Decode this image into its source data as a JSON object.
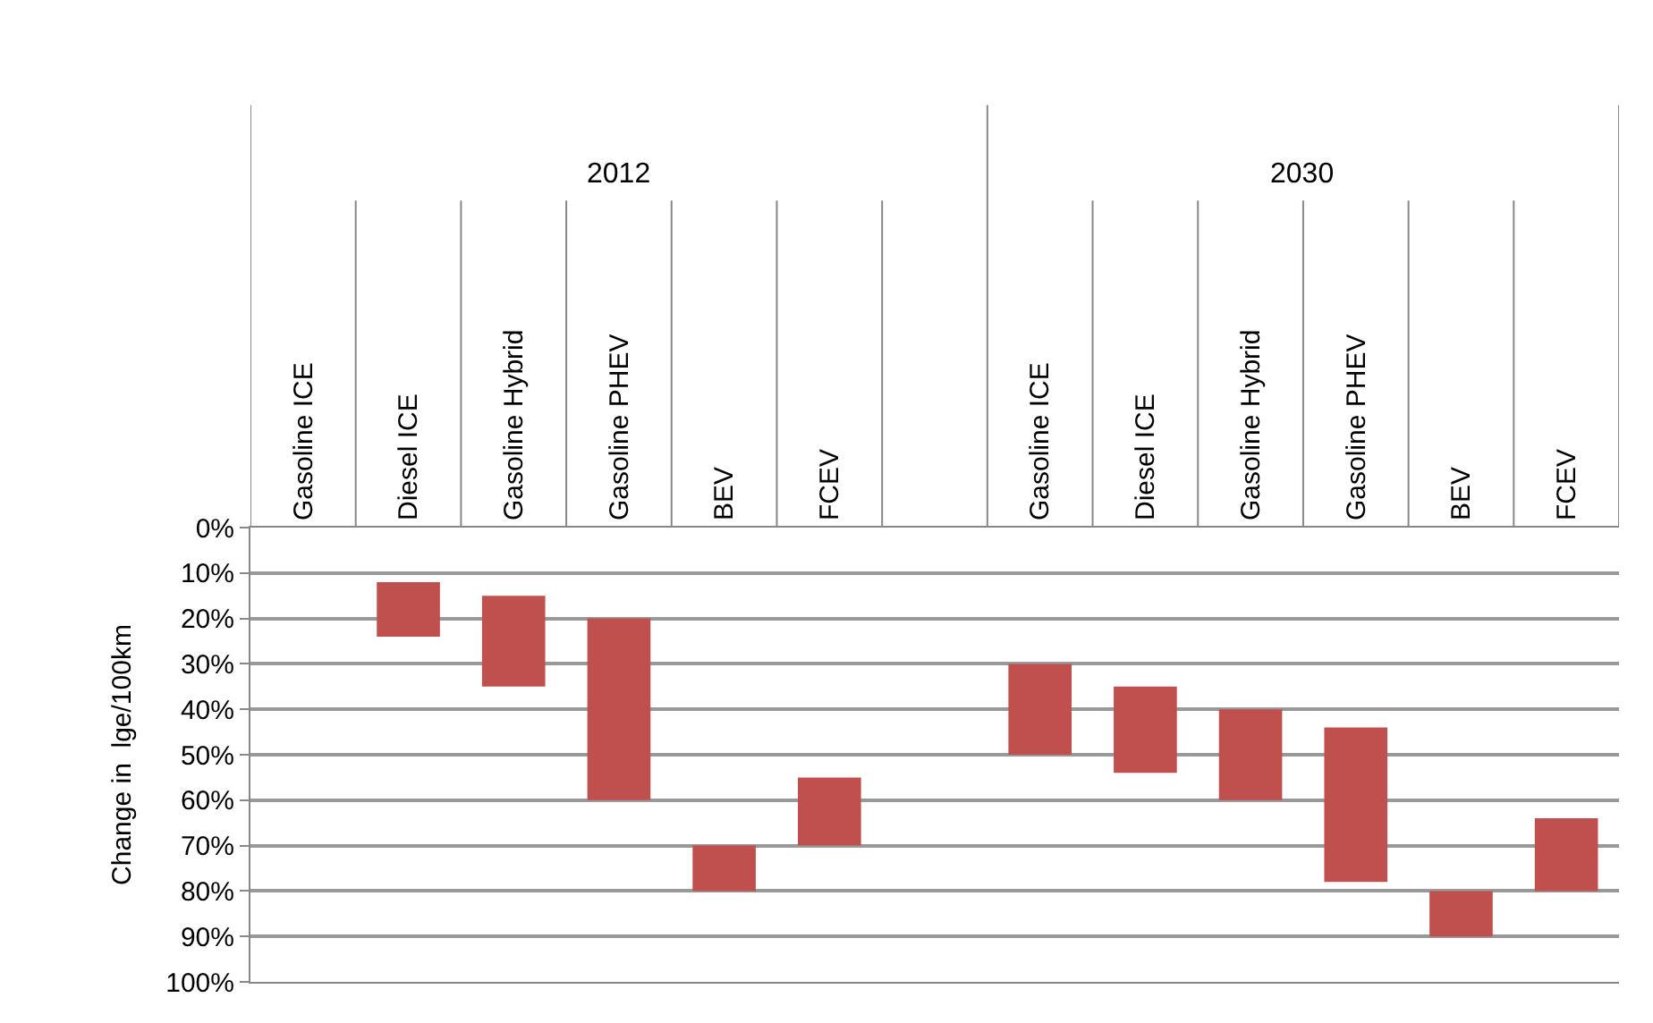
{
  "chart_data": {
    "type": "bar",
    "ylabel": "Change in  lge/100km",
    "categories": [
      "Gasoline ICE",
      "Diesel ICE",
      "Gasoline Hybrid",
      "Gasoline PHEV",
      "BEV",
      "FCEV",
      null,
      "Gasoline ICE",
      "Diesel ICE",
      "Gasoline Hybrid",
      "Gasoline PHEV",
      "BEV",
      "FCEV"
    ],
    "base": [
      null,
      12,
      15,
      20,
      70,
      55,
      null,
      30,
      35,
      40,
      44,
      80,
      64
    ],
    "values": [
      null,
      12,
      20,
      40,
      10,
      15,
      null,
      20,
      19,
      20,
      34,
      10,
      16
    ],
    "color": "#c0504d",
    "annotations": [
      "2012",
      "2030"
    ],
    "ylim": [
      100,
      0
    ],
    "yticks": [
      {
        "value": 0,
        "label": "0%"
      },
      {
        "value": 10,
        "label": "10%"
      },
      {
        "value": 20,
        "label": "20%"
      },
      {
        "value": 30,
        "label": "30%"
      },
      {
        "value": 40,
        "label": "40%"
      },
      {
        "value": 50,
        "label": "50%"
      },
      {
        "value": 60,
        "label": "60%"
      },
      {
        "value": 70,
        "label": "70%"
      },
      {
        "value": 80,
        "label": "80%"
      },
      {
        "value": 90,
        "label": "90%"
      },
      {
        "value": 100,
        "label": "100%"
      }
    ],
    "grid": "y"
  }
}
